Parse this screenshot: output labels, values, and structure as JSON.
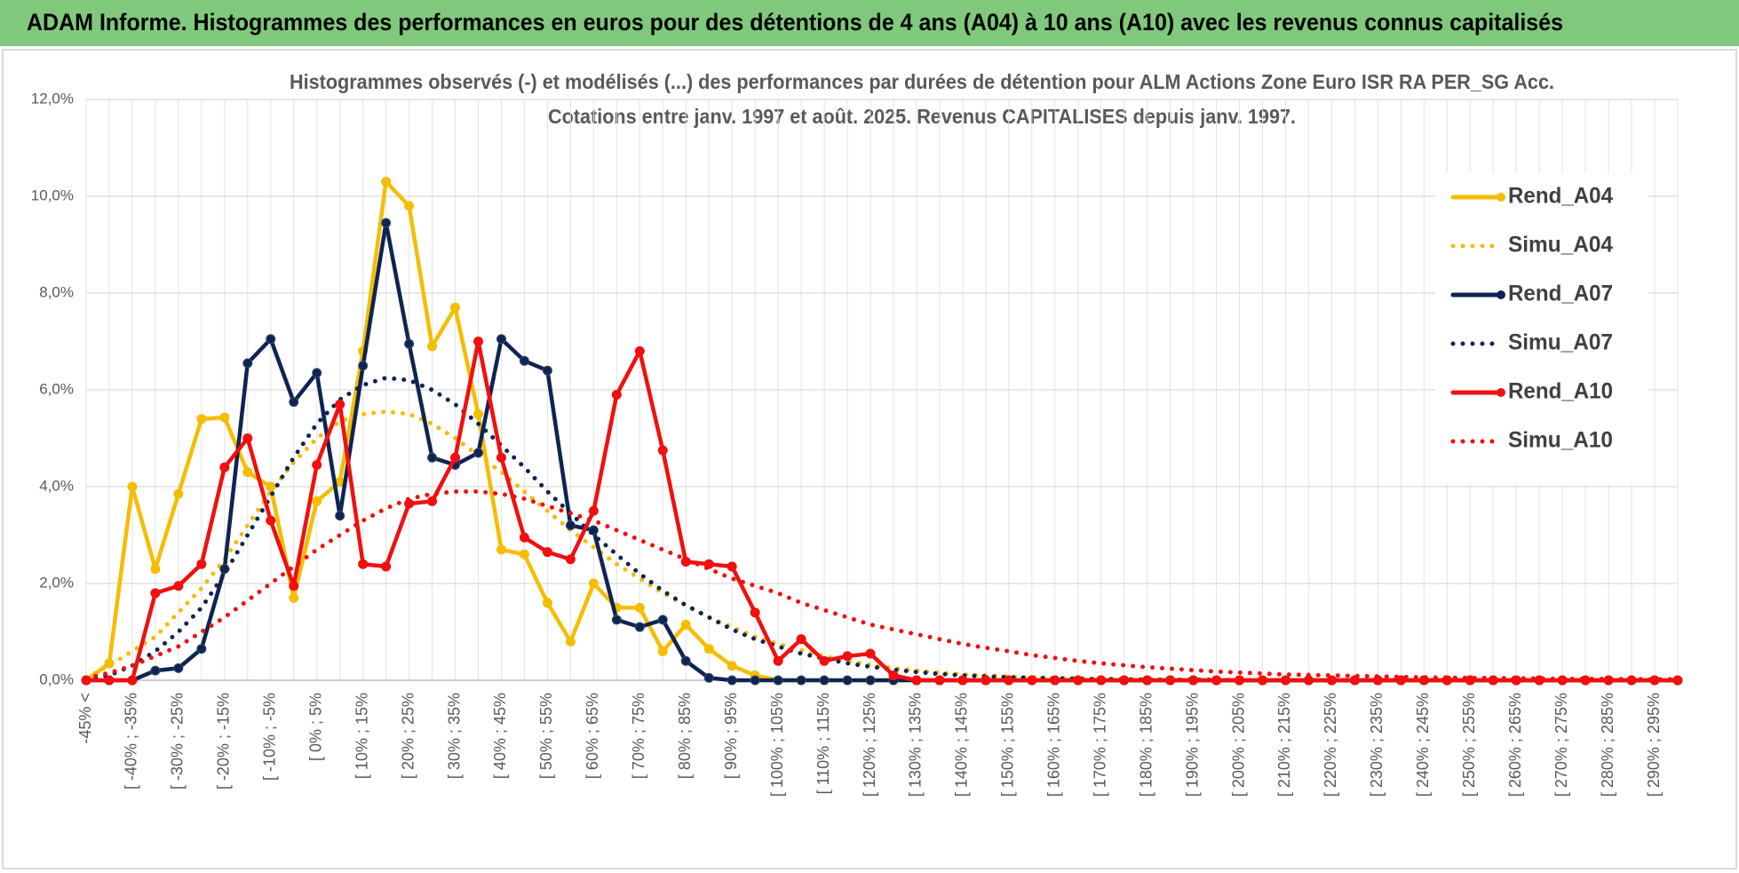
{
  "header": {
    "title": "ADAM Informe. Histogrammes des performances en euros pour des détentions de 4 ans (A04) à 10 ans (A10) avec les revenus connus capitalisés"
  },
  "chart_data": {
    "type": "line",
    "title": "Histogrammes observés (-) et modélisés (...) des performances par durées de détention pour ALM Actions Zone Euro ISR RA PER_SG Acc.",
    "subtitle": "Cotations entre janv. 1997 et août. 2025. Revenus CAPITALISES depuis janv. 1997.",
    "categories": [
      "-45% <",
      null,
      "[ -40% ; -35%",
      null,
      "[ -30% ; -25%",
      null,
      "[ -20% ; -15%",
      null,
      "[ -10% ; -5%",
      null,
      "[ 0% ; 5%",
      null,
      "[ 10% ; 15%",
      null,
      "[ 20% ; 25%",
      null,
      "[ 30% ; 35%",
      null,
      "[ 40% ; 45%",
      null,
      "[ 50% ; 55%",
      null,
      "[ 60% ; 65%",
      null,
      "[ 70% ; 75%",
      null,
      "[ 80% ; 85%",
      null,
      "[ 90% ; 95%",
      null,
      "[ 100% ; 105%",
      null,
      "[ 110% ; 115%",
      null,
      "[ 120% ; 125%",
      null,
      "[ 130% ; 135%",
      null,
      "[ 140% ; 145%",
      null,
      "[ 150% ; 155%",
      null,
      "[ 160% ; 165%",
      null,
      "[ 170% ; 175%",
      null,
      "[ 180% ; 185%",
      null,
      "[ 190% ; 195%",
      null,
      "[ 200% ; 205%",
      null,
      "[ 210% ; 215%",
      null,
      "[ 220% ; 225%",
      null,
      "[ 230% ; 235%",
      null,
      "[ 240% ; 245%",
      null,
      "[ 250% ; 255%",
      null,
      "[ 260% ; 265%",
      null,
      "[ 270% ; 275%",
      null,
      "[ 280% ; 285%",
      null,
      "[ 290% ; 295%",
      null
    ],
    "series": [
      {
        "name": "Rend_A04",
        "color": "#f5bd00",
        "style": "solid",
        "values": [
          0,
          0.35,
          4.0,
          2.3,
          3.85,
          5.4,
          5.43,
          4.3,
          4.0,
          1.7,
          3.7,
          4.1,
          6.8,
          10.3,
          9.8,
          6.9,
          7.7,
          5.5,
          2.7,
          2.6,
          1.6,
          0.8,
          2.0,
          1.5,
          1.5,
          0.6,
          1.15,
          0.65,
          0.3,
          0.1,
          0,
          0,
          0,
          0,
          0,
          0,
          0,
          0,
          0,
          0,
          0,
          0,
          0,
          0,
          0,
          0,
          0,
          0,
          0,
          0,
          0,
          0,
          0,
          0,
          0,
          0,
          0,
          0,
          0,
          0,
          0,
          0,
          0,
          0,
          0,
          0,
          0,
          0,
          0,
          0
        ]
      },
      {
        "name": "Simu_A04",
        "color": "#f5bd00",
        "style": "dotted",
        "values": [
          0.05,
          0.3,
          0.6,
          0.9,
          1.4,
          1.9,
          2.5,
          3.2,
          3.9,
          4.5,
          5.0,
          5.35,
          5.5,
          5.55,
          5.5,
          5.3,
          5.0,
          4.65,
          4.3,
          3.9,
          3.5,
          3.1,
          2.75,
          2.4,
          2.1,
          1.8,
          1.55,
          1.3,
          1.1,
          0.9,
          0.75,
          0.62,
          0.5,
          0.4,
          0.32,
          0.25,
          0.2,
          0.16,
          0.12,
          0.1,
          0.08,
          0.06,
          0.05,
          0.04,
          0.03,
          0.02,
          0.02,
          0.01,
          0.01,
          0.01,
          0,
          0,
          0,
          0,
          0,
          0,
          0,
          0,
          0,
          0,
          0,
          0,
          0,
          0,
          0,
          0,
          0,
          0,
          0,
          0
        ]
      },
      {
        "name": "Rend_A07",
        "color": "#0e2452",
        "style": "solid",
        "values": [
          0,
          0,
          0,
          0.2,
          0.25,
          0.65,
          2.3,
          6.55,
          7.05,
          5.75,
          6.35,
          3.4,
          6.5,
          9.45,
          6.95,
          4.6,
          4.45,
          4.7,
          7.05,
          6.6,
          6.4,
          3.2,
          3.1,
          1.25,
          1.1,
          1.25,
          0.4,
          0.05,
          0,
          0,
          0,
          0,
          0,
          0,
          0,
          0,
          0,
          0,
          0,
          0,
          0,
          0,
          0,
          0,
          0,
          0,
          0,
          0,
          0,
          0,
          0,
          0,
          0,
          0,
          0,
          0,
          0,
          0,
          0,
          0,
          0,
          0,
          0,
          0,
          0,
          0,
          0,
          0,
          0,
          0
        ]
      },
      {
        "name": "Simu_A07",
        "color": "#0e2452",
        "style": "dotted",
        "values": [
          0.02,
          0.1,
          0.3,
          0.6,
          1.0,
          1.5,
          2.2,
          3.0,
          3.8,
          4.6,
          5.3,
          5.8,
          6.1,
          6.25,
          6.2,
          6.0,
          5.7,
          5.3,
          4.85,
          4.4,
          3.9,
          3.45,
          3.0,
          2.6,
          2.2,
          1.85,
          1.55,
          1.3,
          1.05,
          0.85,
          0.7,
          0.55,
          0.45,
          0.35,
          0.28,
          0.22,
          0.17,
          0.13,
          0.1,
          0.08,
          0.06,
          0.05,
          0.04,
          0.03,
          0.02,
          0.02,
          0.01,
          0.01,
          0.01,
          0.01,
          0,
          0,
          0,
          0,
          0,
          0,
          0,
          0,
          0,
          0,
          0,
          0,
          0,
          0,
          0,
          0,
          0,
          0,
          0,
          0
        ]
      },
      {
        "name": "Rend_A10",
        "color": "#f20f0f",
        "style": "solid",
        "values": [
          0,
          0,
          0,
          1.8,
          1.95,
          2.4,
          4.4,
          5.0,
          3.3,
          1.95,
          4.45,
          5.7,
          2.4,
          2.35,
          3.65,
          3.7,
          4.6,
          7.0,
          4.6,
          2.95,
          2.65,
          2.5,
          3.5,
          5.9,
          6.8,
          4.75,
          2.45,
          2.4,
          2.35,
          1.4,
          0.4,
          0.85,
          0.4,
          0.5,
          0.55,
          0.1,
          0,
          0,
          0,
          0,
          0,
          0,
          0,
          0,
          0,
          0,
          0,
          0,
          0,
          0,
          0,
          0,
          0,
          0,
          0,
          0,
          0,
          0,
          0,
          0,
          0,
          0,
          0,
          0,
          0,
          0,
          0,
          0,
          0,
          0
        ]
      },
      {
        "name": "Simu_A10",
        "color": "#f20f0f",
        "style": "dotted",
        "values": [
          0.05,
          0.15,
          0.3,
          0.5,
          0.7,
          1.0,
          1.3,
          1.65,
          2.0,
          2.35,
          2.7,
          3.0,
          3.3,
          3.55,
          3.75,
          3.85,
          3.9,
          3.9,
          3.85,
          3.75,
          3.6,
          3.45,
          3.3,
          3.1,
          2.9,
          2.7,
          2.5,
          2.3,
          2.1,
          1.95,
          1.8,
          1.6,
          1.45,
          1.3,
          1.15,
          1.05,
          0.95,
          0.85,
          0.75,
          0.67,
          0.6,
          0.52,
          0.46,
          0.4,
          0.35,
          0.31,
          0.27,
          0.24,
          0.21,
          0.18,
          0.16,
          0.14,
          0.12,
          0.11,
          0.1,
          0.09,
          0.08,
          0.07,
          0.06,
          0.055,
          0.05,
          0.045,
          0.04,
          0.035,
          0.03,
          0.03,
          0.025,
          0.025,
          0.02,
          0.02
        ]
      }
    ],
    "ylim": [
      0,
      12
    ],
    "yticks": [
      {
        "value": 0,
        "label": "0,0%"
      },
      {
        "value": 2,
        "label": "2,0%"
      },
      {
        "value": 4,
        "label": "4,0%"
      },
      {
        "value": 6,
        "label": "6,0%"
      },
      {
        "value": 8,
        "label": "8,0%"
      },
      {
        "value": 10,
        "label": "10,0%"
      },
      {
        "value": 12,
        "label": "12,0%"
      }
    ],
    "grid": true,
    "legend": "right"
  }
}
